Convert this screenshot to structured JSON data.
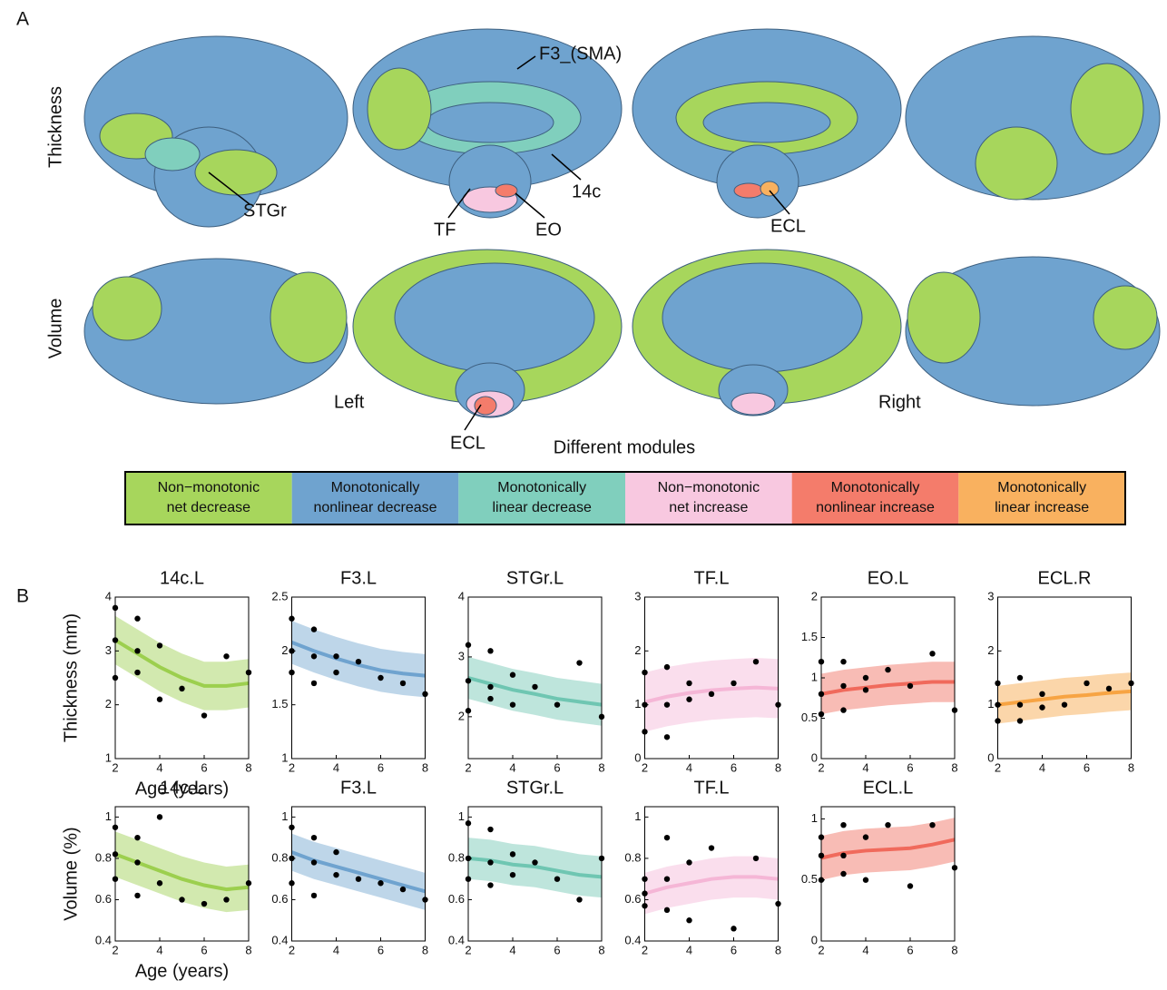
{
  "panel_a": {
    "label": "A",
    "rows": [
      "Thickness",
      "Volume"
    ],
    "annotations": [
      "F3_(SMA)",
      "STGr",
      "TF",
      "EO",
      "14c",
      "ECL",
      "ECL"
    ],
    "hemispheres": [
      "Left",
      "Right"
    ],
    "legend_title": "Different modules",
    "modules": [
      {
        "name": [
          "Non−monotonic",
          "net decrease"
        ],
        "color": "#a7d65c"
      },
      {
        "name": [
          "Monotonically",
          "nonlinear decrease"
        ],
        "color": "#6fa3cf"
      },
      {
        "name": [
          "Monotonically",
          "linear decrease"
        ],
        "color": "#80cfbd"
      },
      {
        "name": [
          "Non−monotonic",
          "net increase"
        ],
        "color": "#f8c8e0"
      },
      {
        "name": [
          "Monotonically",
          "nonlinear increase"
        ],
        "color": "#f47c6b"
      },
      {
        "name": [
          "Monotonically",
          "linear increase"
        ],
        "color": "#f9b15f"
      }
    ]
  },
  "panel_b": {
    "label": "B"
  },
  "chart_data": [
    {
      "type": "fit",
      "title": "14c.L",
      "ylabel": "Thickness (mm)",
      "xlabel": "Age (years)",
      "color": "#9ccf4e",
      "xlim": [
        2,
        8
      ],
      "xticks": [
        2,
        4,
        6,
        8
      ],
      "ylim": [
        1,
        4
      ],
      "yticks": [
        1,
        2,
        3,
        4
      ],
      "x": [
        2,
        3,
        4,
        5,
        6,
        7,
        8
      ],
      "values": [
        3.2,
        2.95,
        2.7,
        2.5,
        2.35,
        2.35,
        2.4
      ],
      "lower": [
        2.75,
        2.5,
        2.25,
        2.05,
        1.9,
        1.9,
        1.95
      ],
      "upper": [
        3.65,
        3.4,
        3.15,
        2.95,
        2.8,
        2.8,
        2.85
      ],
      "points": {
        "x": [
          2,
          2,
          2,
          3,
          3,
          3,
          4,
          4,
          5,
          6,
          7,
          8
        ],
        "y": [
          3.8,
          3.2,
          2.5,
          3.6,
          3.0,
          2.6,
          3.1,
          2.1,
          2.3,
          1.8,
          2.9,
          2.6
        ]
      }
    },
    {
      "type": "fit",
      "title": "F3.L",
      "color": "#6fa3cf",
      "xlim": [
        2,
        8
      ],
      "xticks": [
        2,
        4,
        6,
        8
      ],
      "ylim": [
        1,
        2.5
      ],
      "yticks": [
        1,
        1.5,
        2,
        2.5
      ],
      "x": [
        2,
        3,
        4,
        5,
        6,
        7,
        8
      ],
      "values": [
        2.08,
        2.0,
        1.93,
        1.87,
        1.82,
        1.79,
        1.77
      ],
      "lower": [
        1.88,
        1.8,
        1.73,
        1.67,
        1.62,
        1.59,
        1.57
      ],
      "upper": [
        2.28,
        2.2,
        2.13,
        2.07,
        2.02,
        1.99,
        1.97
      ],
      "points": {
        "x": [
          2,
          2,
          2,
          3,
          3,
          3,
          4,
          4,
          5,
          6,
          7,
          8
        ],
        "y": [
          2.3,
          2.0,
          1.8,
          2.2,
          1.95,
          1.7,
          1.95,
          1.8,
          1.9,
          1.75,
          1.7,
          1.6
        ]
      }
    },
    {
      "type": "fit",
      "title": "STGr.L",
      "color": "#6fc6b2",
      "xlim": [
        2,
        8
      ],
      "xticks": [
        2,
        4,
        6,
        8
      ],
      "ylim": [
        1.3,
        4
      ],
      "yticks": [
        2,
        3,
        4
      ],
      "x": [
        2,
        3,
        4,
        5,
        6,
        7,
        8
      ],
      "values": [
        2.65,
        2.55,
        2.45,
        2.38,
        2.3,
        2.25,
        2.2
      ],
      "lower": [
        2.3,
        2.2,
        2.1,
        2.03,
        1.95,
        1.9,
        1.85
      ],
      "upper": [
        3.0,
        2.9,
        2.8,
        2.73,
        2.65,
        2.6,
        2.55
      ],
      "points": {
        "x": [
          2,
          2,
          2,
          3,
          3,
          3,
          4,
          4,
          5,
          6,
          7,
          8
        ],
        "y": [
          3.2,
          2.6,
          2.1,
          3.1,
          2.5,
          2.3,
          2.7,
          2.2,
          2.5,
          2.2,
          2.9,
          2.0
        ]
      }
    },
    {
      "type": "fit",
      "title": "TF.L",
      "color": "#f5b6d6",
      "xlim": [
        2,
        8
      ],
      "xticks": [
        2,
        4,
        6,
        8
      ],
      "ylim": [
        0,
        3
      ],
      "yticks": [
        0,
        1,
        2,
        3
      ],
      "x": [
        2,
        3,
        4,
        5,
        6,
        7,
        8
      ],
      "values": [
        1.05,
        1.15,
        1.22,
        1.27,
        1.3,
        1.32,
        1.3
      ],
      "lower": [
        0.5,
        0.6,
        0.67,
        0.72,
        0.75,
        0.77,
        0.75
      ],
      "upper": [
        1.6,
        1.7,
        1.77,
        1.82,
        1.85,
        1.87,
        1.85
      ],
      "points": {
        "x": [
          2,
          2,
          2,
          3,
          3,
          3,
          4,
          4,
          5,
          6,
          7,
          8
        ],
        "y": [
          1.6,
          1.0,
          0.5,
          1.7,
          1.0,
          0.4,
          1.4,
          1.1,
          1.2,
          1.4,
          1.8,
          1.0
        ]
      }
    },
    {
      "type": "fit",
      "title": "EO.L",
      "color": "#f06a5c",
      "xlim": [
        2,
        8
      ],
      "xticks": [
        2,
        4,
        6,
        8
      ],
      "ylim": [
        0,
        2
      ],
      "yticks": [
        0,
        0.5,
        1,
        1.5,
        2
      ],
      "x": [
        2,
        3,
        4,
        5,
        6,
        7,
        8
      ],
      "values": [
        0.8,
        0.85,
        0.88,
        0.91,
        0.93,
        0.95,
        0.95
      ],
      "lower": [
        0.55,
        0.6,
        0.63,
        0.66,
        0.68,
        0.7,
        0.7
      ],
      "upper": [
        1.05,
        1.1,
        1.13,
        1.16,
        1.18,
        1.2,
        1.2
      ],
      "points": {
        "x": [
          2,
          2,
          2,
          3,
          3,
          3,
          4,
          4,
          5,
          6,
          7,
          8
        ],
        "y": [
          1.2,
          0.8,
          0.55,
          1.2,
          0.9,
          0.6,
          1.0,
          0.85,
          1.1,
          0.9,
          1.3,
          0.6
        ]
      }
    },
    {
      "type": "fit",
      "title": "ECL.R",
      "color": "#f7a443",
      "xlim": [
        2,
        8
      ],
      "xticks": [
        2,
        4,
        6,
        8
      ],
      "ylim": [
        0,
        3
      ],
      "yticks": [
        0,
        1,
        2,
        3
      ],
      "x": [
        2,
        3,
        4,
        5,
        6,
        7,
        8
      ],
      "values": [
        1.0,
        1.05,
        1.1,
        1.15,
        1.18,
        1.22,
        1.25
      ],
      "lower": [
        0.65,
        0.7,
        0.75,
        0.8,
        0.83,
        0.87,
        0.9
      ],
      "upper": [
        1.35,
        1.4,
        1.45,
        1.5,
        1.53,
        1.57,
        1.6
      ],
      "points": {
        "x": [
          2,
          2,
          2,
          3,
          3,
          3,
          4,
          4,
          5,
          6,
          7,
          8
        ],
        "y": [
          1.4,
          1.0,
          0.7,
          1.5,
          1.0,
          0.7,
          1.2,
          0.95,
          1.0,
          1.4,
          1.3,
          1.4
        ]
      }
    },
    {
      "type": "fit",
      "title": "14c.L",
      "ylabel": "Volume (%)",
      "xlabel": "Age (years)",
      "color": "#9ccf4e",
      "xlim": [
        2,
        8
      ],
      "xticks": [
        2,
        4,
        6,
        8
      ],
      "ylim": [
        0.4,
        1.05
      ],
      "yticks": [
        0.4,
        0.6,
        0.8,
        1
      ],
      "x": [
        2,
        3,
        4,
        5,
        6,
        7,
        8
      ],
      "values": [
        0.82,
        0.78,
        0.74,
        0.7,
        0.67,
        0.65,
        0.66
      ],
      "lower": [
        0.71,
        0.67,
        0.63,
        0.59,
        0.56,
        0.54,
        0.55
      ],
      "upper": [
        0.93,
        0.89,
        0.85,
        0.81,
        0.78,
        0.76,
        0.77
      ],
      "points": {
        "x": [
          2,
          2,
          2,
          3,
          3,
          3,
          4,
          4,
          5,
          6,
          7,
          8
        ],
        "y": [
          0.95,
          0.82,
          0.7,
          0.9,
          0.78,
          0.62,
          1.0,
          0.68,
          0.6,
          0.58,
          0.6,
          0.68
        ]
      }
    },
    {
      "type": "fit",
      "title": "F3.L",
      "color": "#6fa3cf",
      "xlim": [
        2,
        8
      ],
      "xticks": [
        2,
        4,
        6,
        8
      ],
      "ylim": [
        0.4,
        1.05
      ],
      "yticks": [
        0.4,
        0.6,
        0.8,
        1
      ],
      "x": [
        2,
        3,
        4,
        5,
        6,
        7,
        8
      ],
      "values": [
        0.83,
        0.79,
        0.76,
        0.73,
        0.7,
        0.67,
        0.64
      ],
      "lower": [
        0.74,
        0.7,
        0.67,
        0.64,
        0.61,
        0.58,
        0.55
      ],
      "upper": [
        0.92,
        0.88,
        0.85,
        0.82,
        0.79,
        0.76,
        0.73
      ],
      "points": {
        "x": [
          2,
          2,
          2,
          3,
          3,
          3,
          4,
          4,
          5,
          6,
          7,
          8
        ],
        "y": [
          0.95,
          0.8,
          0.68,
          0.9,
          0.78,
          0.62,
          0.83,
          0.72,
          0.7,
          0.68,
          0.65,
          0.6
        ]
      }
    },
    {
      "type": "fit",
      "title": "STGr.L",
      "color": "#6fc6b2",
      "xlim": [
        2,
        8
      ],
      "xticks": [
        2,
        4,
        6,
        8
      ],
      "ylim": [
        0.4,
        1.05
      ],
      "yticks": [
        0.4,
        0.6,
        0.8,
        1
      ],
      "x": [
        2,
        3,
        4,
        5,
        6,
        7,
        8
      ],
      "values": [
        0.8,
        0.79,
        0.77,
        0.76,
        0.74,
        0.72,
        0.71
      ],
      "lower": [
        0.7,
        0.69,
        0.67,
        0.66,
        0.64,
        0.62,
        0.61
      ],
      "upper": [
        0.9,
        0.89,
        0.87,
        0.86,
        0.84,
        0.82,
        0.81
      ],
      "points": {
        "x": [
          2,
          2,
          2,
          3,
          3,
          3,
          4,
          4,
          5,
          6,
          7,
          8
        ],
        "y": [
          0.97,
          0.8,
          0.7,
          0.94,
          0.78,
          0.67,
          0.82,
          0.72,
          0.78,
          0.7,
          0.6,
          0.8
        ]
      }
    },
    {
      "type": "fit",
      "title": "TF.L",
      "color": "#f5b6d6",
      "xlim": [
        2,
        8
      ],
      "xticks": [
        2,
        4,
        6,
        8
      ],
      "ylim": [
        0.4,
        1.05
      ],
      "yticks": [
        0.4,
        0.6,
        0.8,
        1
      ],
      "x": [
        2,
        3,
        4,
        5,
        6,
        7,
        8
      ],
      "values": [
        0.63,
        0.66,
        0.68,
        0.7,
        0.71,
        0.71,
        0.7
      ],
      "lower": [
        0.53,
        0.56,
        0.58,
        0.6,
        0.61,
        0.61,
        0.6
      ],
      "upper": [
        0.73,
        0.76,
        0.78,
        0.8,
        0.81,
        0.81,
        0.8
      ],
      "points": {
        "x": [
          2,
          2,
          2,
          3,
          3,
          3,
          4,
          4,
          5,
          6,
          7,
          8
        ],
        "y": [
          0.7,
          0.63,
          0.57,
          0.9,
          0.7,
          0.55,
          0.78,
          0.5,
          0.85,
          0.46,
          0.8,
          0.58
        ]
      }
    },
    {
      "type": "fit",
      "title": "ECL.L",
      "color": "#f06a5c",
      "xlim": [
        2,
        8
      ],
      "xticks": [
        2,
        4,
        6,
        8
      ],
      "ylim": [
        0,
        1.1
      ],
      "yticks": [
        0,
        0.5,
        1
      ],
      "x": [
        2,
        3,
        4,
        5,
        6,
        7,
        8
      ],
      "values": [
        0.68,
        0.72,
        0.74,
        0.75,
        0.76,
        0.79,
        0.83
      ],
      "lower": [
        0.5,
        0.54,
        0.56,
        0.57,
        0.58,
        0.61,
        0.65
      ],
      "upper": [
        0.86,
        0.9,
        0.92,
        0.93,
        0.94,
        0.97,
        1.01
      ],
      "points": {
        "x": [
          2,
          2,
          2,
          3,
          3,
          3,
          4,
          4,
          5,
          6,
          7,
          8
        ],
        "y": [
          0.85,
          0.7,
          0.5,
          0.95,
          0.7,
          0.55,
          0.85,
          0.5,
          0.95,
          0.45,
          0.95,
          0.6
        ]
      }
    }
  ]
}
